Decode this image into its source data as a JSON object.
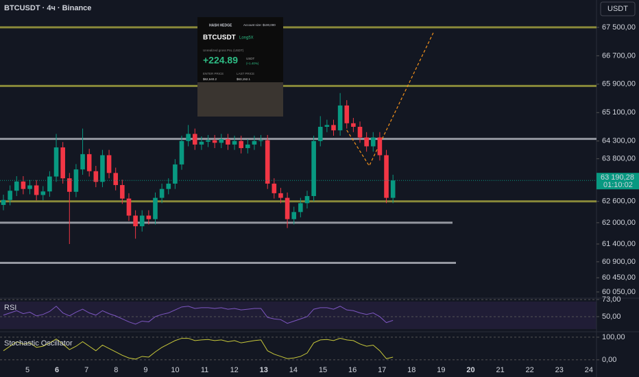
{
  "header": {
    "symbol": "BTCUSDT · 4ч · Binance",
    "currency_button": "USDT"
  },
  "card": {
    "brand": "HASH HEDGE",
    "account": "Account size: $100,000",
    "pair": "BTCUSDT",
    "side": "Long5X",
    "pnl_title": "Unrealized gross PnL (USDT)",
    "pnl": "+224.89",
    "pnl_unit": "USDT",
    "pnl_pct": "(+1.40%)",
    "enter_label": "ENTER PRICE",
    "enter_value": "$62,640.2",
    "last_label": "LAST PRICE",
    "last_value": "$63,152.1"
  },
  "chart_data": [
    {
      "type": "candlestick",
      "up_color": "#089981",
      "down_color": "#f23645",
      "open": [
        62500,
        62640,
        62900,
        63160,
        62950,
        63050,
        62780,
        62880,
        63300,
        64120,
        63250,
        62870,
        63500,
        63930,
        63450,
        63150,
        63900,
        63400,
        63060,
        62680,
        62200,
        61900,
        62200,
        62100,
        62700,
        62950,
        63100,
        63640,
        64300,
        64500,
        64200,
        64280,
        64320,
        64250,
        64350,
        64200,
        64300,
        64100,
        64200,
        64300,
        64320,
        63100,
        62830,
        62700,
        62100,
        62300,
        62550,
        62750,
        64300,
        64700,
        64750,
        64600,
        65300,
        64800,
        64700,
        64400,
        64150,
        64400,
        63900,
        62700
      ],
      "high": [
        62790,
        63050,
        63310,
        63310,
        63200,
        63200,
        63030,
        63450,
        64500,
        64270,
        63400,
        63650,
        64650,
        64080,
        63600,
        64050,
        64050,
        63550,
        63210,
        62830,
        62350,
        62350,
        62350,
        62850,
        63100,
        63250,
        63790,
        64450,
        64750,
        64650,
        64430,
        64470,
        64470,
        64500,
        64500,
        64450,
        64450,
        64350,
        64450,
        64470,
        64470,
        63250,
        62980,
        62850,
        62450,
        62700,
        62900,
        64450,
        65000,
        64900,
        64900,
        65650,
        65450,
        64950,
        64850,
        64550,
        64550,
        64550,
        64050,
        63350
      ],
      "low": [
        62350,
        62490,
        62750,
        62800,
        62800,
        62630,
        62630,
        62730,
        63150,
        63100,
        61400,
        62720,
        63350,
        63300,
        63000,
        63000,
        63250,
        62910,
        62530,
        62050,
        61550,
        61750,
        61950,
        61950,
        62550,
        62800,
        62950,
        63490,
        64150,
        64050,
        64050,
        64130,
        64100,
        64100,
        64050,
        64050,
        63950,
        63950,
        64050,
        64150,
        62950,
        62680,
        62550,
        61850,
        61950,
        62150,
        62400,
        62600,
        64150,
        64550,
        64450,
        64450,
        64650,
        64550,
        64250,
        64000,
        64000,
        63750,
        62550,
        62550
      ],
      "close": [
        62640,
        62900,
        63160,
        62950,
        63050,
        62780,
        62880,
        63300,
        64120,
        63250,
        62870,
        63500,
        63930,
        63450,
        63150,
        63900,
        63400,
        63060,
        62680,
        62200,
        61900,
        62200,
        62100,
        62700,
        62950,
        63100,
        63640,
        64300,
        64500,
        64200,
        64280,
        64320,
        64250,
        64350,
        64200,
        64300,
        64100,
        64200,
        64300,
        64320,
        63100,
        62830,
        62700,
        62100,
        62300,
        62550,
        62750,
        64300,
        64700,
        64750,
        64600,
        65300,
        64800,
        64700,
        64400,
        64150,
        64400,
        63900,
        62700,
        63190
      ],
      "ylim": [
        59875,
        68270
      ],
      "yticks": [
        {
          "value": 67500,
          "label": "67 500,00"
        },
        {
          "value": 66700,
          "label": "66 700,00"
        },
        {
          "value": 65900,
          "label": "65 900,00"
        },
        {
          "value": 65100,
          "label": "65 100,00"
        },
        {
          "value": 64300,
          "label": "64 300,00"
        },
        {
          "value": 63800,
          "label": "63 800,00"
        },
        {
          "value": 62600,
          "label": "62 600,00"
        },
        {
          "value": 62000,
          "label": "62 000,00"
        },
        {
          "value": 61400,
          "label": "61 400,00"
        },
        {
          "value": 60900,
          "label": "60 900,00"
        },
        {
          "value": 60450,
          "label": "60 450,00"
        },
        {
          "value": 60050,
          "label": "60 050,00"
        }
      ],
      "levels": [
        {
          "value": 67500,
          "color": "#8a8a3a"
        },
        {
          "value": 65850,
          "color": "#8a8a3a"
        },
        {
          "value": 62600,
          "color": "#8a8a3a"
        },
        {
          "value": 64360,
          "color": "#9598a1"
        },
        {
          "value": 62000,
          "color": "#9598a1"
        },
        {
          "value": 60870,
          "color": "#9598a1"
        }
      ],
      "projection": {
        "x": [
          52,
          55.4,
          65.1
        ],
        "y": [
          64605,
          63601,
          67346
        ],
        "color": "#f7931a"
      },
      "last_price": {
        "value": 63190.28,
        "label": "63 190,28"
      },
      "countdown": "01:10:02",
      "x_labels": [
        "5",
        "6",
        "7",
        "8",
        "9",
        "10",
        "11",
        "12",
        "13",
        "14",
        "15",
        "16",
        "17",
        "18",
        "19",
        "20",
        "21",
        "22",
        "23",
        "24"
      ]
    },
    {
      "type": "line",
      "title": "RSI",
      "color": "#7e57c2",
      "values": [
        52,
        55,
        58,
        54,
        56,
        51,
        53,
        57,
        64,
        55,
        51,
        56,
        60,
        55,
        52,
        58,
        54,
        51,
        47,
        43,
        40,
        44,
        43,
        50,
        53,
        55,
        59,
        63,
        64,
        61,
        62,
        62,
        61,
        62,
        60,
        61,
        59,
        60,
        61,
        61,
        49,
        47,
        46,
        41,
        44,
        47,
        50,
        60,
        62,
        62,
        60,
        64,
        59,
        58,
        55,
        53,
        55,
        50,
        42,
        45
      ],
      "ylim": [
        28.8,
        84
      ],
      "yticks": [
        {
          "value": 73,
          "label": "73,00"
        },
        {
          "value": 50,
          "label": "50,00"
        }
      ]
    },
    {
      "type": "line",
      "title": "Stochastic Oscillator",
      "color": "#c9c93a",
      "values": [
        40,
        60,
        80,
        70,
        75,
        55,
        60,
        75,
        92,
        70,
        45,
        60,
        80,
        60,
        40,
        65,
        50,
        35,
        20,
        8,
        3,
        15,
        12,
        35,
        55,
        70,
        85,
        95,
        95,
        85,
        88,
        90,
        85,
        88,
        80,
        85,
        75,
        80,
        85,
        88,
        40,
        25,
        15,
        5,
        8,
        15,
        30,
        75,
        88,
        90,
        85,
        95,
        88,
        85,
        70,
        60,
        65,
        40,
        5,
        12
      ],
      "ylim": [
        -70,
        121
      ],
      "yticks": [
        {
          "value": 100,
          "label": "100,00"
        },
        {
          "value": 0,
          "label": "0,00"
        }
      ]
    }
  ]
}
